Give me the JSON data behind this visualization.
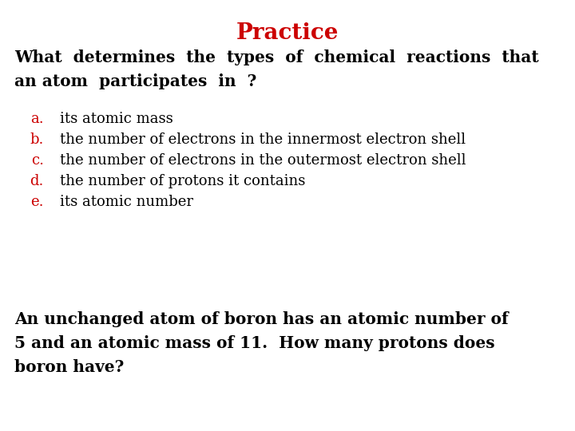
{
  "title": "Practice",
  "title_color": "#cc0000",
  "title_fontsize": 20,
  "bg_color": "#ffffff",
  "question_line1": "What  determines  the  types  of  chemical  reactions  that",
  "question_line2": "an atom  participates  in  ?",
  "question_fontsize": 14.5,
  "question_color": "#000000",
  "options_labels": [
    "a.",
    "b.",
    "c.",
    "d.",
    "e."
  ],
  "options_texts": [
    "its atomic mass",
    "the number of electrons in the innermost electron shell",
    "the number of electrons in the outermost electron shell",
    "the number of protons it contains",
    "its atomic number"
  ],
  "options_label_color": "#cc0000",
  "options_text_color": "#000000",
  "options_fontsize": 13,
  "followup_line1": "An unchanged atom of boron has an atomic number of",
  "followup_line2": "5 and an atomic mass of 11.  How many protons does",
  "followup_line3": "boron have?",
  "followup_fontsize": 14.5,
  "followup_color": "#000000"
}
